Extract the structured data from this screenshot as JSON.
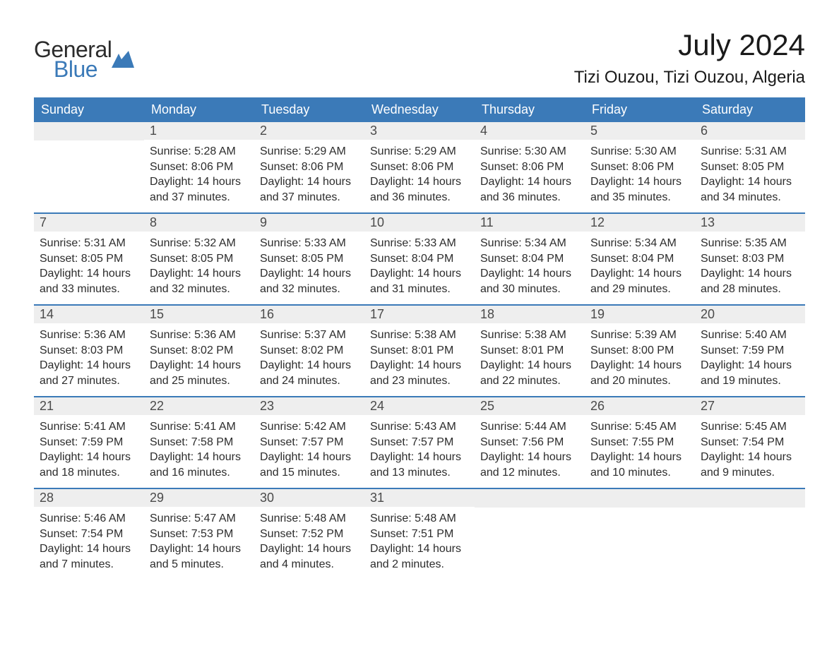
{
  "logo": {
    "word1": "General",
    "word2": "Blue",
    "icon_color": "#3b7ab8",
    "text_color_1": "#2c2c2c",
    "text_color_2": "#3b7ab8"
  },
  "title": "July 2024",
  "location": "Tizi Ouzou, Tizi Ouzou, Algeria",
  "colors": {
    "header_bg": "#3b7ab8",
    "header_text": "#ffffff",
    "daynum_bg": "#eeeeee",
    "daynum_text": "#4a4a4a",
    "body_text": "#2c2c2c",
    "week_border": "#3b7ab8",
    "page_bg": "#ffffff"
  },
  "typography": {
    "title_fontsize": 42,
    "location_fontsize": 24,
    "dayheader_fontsize": 18,
    "daynum_fontsize": 18,
    "detail_fontsize": 16,
    "font_family": "Arial"
  },
  "day_headers": [
    "Sunday",
    "Monday",
    "Tuesday",
    "Wednesday",
    "Thursday",
    "Friday",
    "Saturday"
  ],
  "weeks": [
    [
      {
        "num": "",
        "sunrise": "",
        "sunset": "",
        "daylight": ""
      },
      {
        "num": "1",
        "sunrise": "Sunrise: 5:28 AM",
        "sunset": "Sunset: 8:06 PM",
        "daylight": "Daylight: 14 hours and 37 minutes."
      },
      {
        "num": "2",
        "sunrise": "Sunrise: 5:29 AM",
        "sunset": "Sunset: 8:06 PM",
        "daylight": "Daylight: 14 hours and 37 minutes."
      },
      {
        "num": "3",
        "sunrise": "Sunrise: 5:29 AM",
        "sunset": "Sunset: 8:06 PM",
        "daylight": "Daylight: 14 hours and 36 minutes."
      },
      {
        "num": "4",
        "sunrise": "Sunrise: 5:30 AM",
        "sunset": "Sunset: 8:06 PM",
        "daylight": "Daylight: 14 hours and 36 minutes."
      },
      {
        "num": "5",
        "sunrise": "Sunrise: 5:30 AM",
        "sunset": "Sunset: 8:06 PM",
        "daylight": "Daylight: 14 hours and 35 minutes."
      },
      {
        "num": "6",
        "sunrise": "Sunrise: 5:31 AM",
        "sunset": "Sunset: 8:05 PM",
        "daylight": "Daylight: 14 hours and 34 minutes."
      }
    ],
    [
      {
        "num": "7",
        "sunrise": "Sunrise: 5:31 AM",
        "sunset": "Sunset: 8:05 PM",
        "daylight": "Daylight: 14 hours and 33 minutes."
      },
      {
        "num": "8",
        "sunrise": "Sunrise: 5:32 AM",
        "sunset": "Sunset: 8:05 PM",
        "daylight": "Daylight: 14 hours and 32 minutes."
      },
      {
        "num": "9",
        "sunrise": "Sunrise: 5:33 AM",
        "sunset": "Sunset: 8:05 PM",
        "daylight": "Daylight: 14 hours and 32 minutes."
      },
      {
        "num": "10",
        "sunrise": "Sunrise: 5:33 AM",
        "sunset": "Sunset: 8:04 PM",
        "daylight": "Daylight: 14 hours and 31 minutes."
      },
      {
        "num": "11",
        "sunrise": "Sunrise: 5:34 AM",
        "sunset": "Sunset: 8:04 PM",
        "daylight": "Daylight: 14 hours and 30 minutes."
      },
      {
        "num": "12",
        "sunrise": "Sunrise: 5:34 AM",
        "sunset": "Sunset: 8:04 PM",
        "daylight": "Daylight: 14 hours and 29 minutes."
      },
      {
        "num": "13",
        "sunrise": "Sunrise: 5:35 AM",
        "sunset": "Sunset: 8:03 PM",
        "daylight": "Daylight: 14 hours and 28 minutes."
      }
    ],
    [
      {
        "num": "14",
        "sunrise": "Sunrise: 5:36 AM",
        "sunset": "Sunset: 8:03 PM",
        "daylight": "Daylight: 14 hours and 27 minutes."
      },
      {
        "num": "15",
        "sunrise": "Sunrise: 5:36 AM",
        "sunset": "Sunset: 8:02 PM",
        "daylight": "Daylight: 14 hours and 25 minutes."
      },
      {
        "num": "16",
        "sunrise": "Sunrise: 5:37 AM",
        "sunset": "Sunset: 8:02 PM",
        "daylight": "Daylight: 14 hours and 24 minutes."
      },
      {
        "num": "17",
        "sunrise": "Sunrise: 5:38 AM",
        "sunset": "Sunset: 8:01 PM",
        "daylight": "Daylight: 14 hours and 23 minutes."
      },
      {
        "num": "18",
        "sunrise": "Sunrise: 5:38 AM",
        "sunset": "Sunset: 8:01 PM",
        "daylight": "Daylight: 14 hours and 22 minutes."
      },
      {
        "num": "19",
        "sunrise": "Sunrise: 5:39 AM",
        "sunset": "Sunset: 8:00 PM",
        "daylight": "Daylight: 14 hours and 20 minutes."
      },
      {
        "num": "20",
        "sunrise": "Sunrise: 5:40 AM",
        "sunset": "Sunset: 7:59 PM",
        "daylight": "Daylight: 14 hours and 19 minutes."
      }
    ],
    [
      {
        "num": "21",
        "sunrise": "Sunrise: 5:41 AM",
        "sunset": "Sunset: 7:59 PM",
        "daylight": "Daylight: 14 hours and 18 minutes."
      },
      {
        "num": "22",
        "sunrise": "Sunrise: 5:41 AM",
        "sunset": "Sunset: 7:58 PM",
        "daylight": "Daylight: 14 hours and 16 minutes."
      },
      {
        "num": "23",
        "sunrise": "Sunrise: 5:42 AM",
        "sunset": "Sunset: 7:57 PM",
        "daylight": "Daylight: 14 hours and 15 minutes."
      },
      {
        "num": "24",
        "sunrise": "Sunrise: 5:43 AM",
        "sunset": "Sunset: 7:57 PM",
        "daylight": "Daylight: 14 hours and 13 minutes."
      },
      {
        "num": "25",
        "sunrise": "Sunrise: 5:44 AM",
        "sunset": "Sunset: 7:56 PM",
        "daylight": "Daylight: 14 hours and 12 minutes."
      },
      {
        "num": "26",
        "sunrise": "Sunrise: 5:45 AM",
        "sunset": "Sunset: 7:55 PM",
        "daylight": "Daylight: 14 hours and 10 minutes."
      },
      {
        "num": "27",
        "sunrise": "Sunrise: 5:45 AM",
        "sunset": "Sunset: 7:54 PM",
        "daylight": "Daylight: 14 hours and 9 minutes."
      }
    ],
    [
      {
        "num": "28",
        "sunrise": "Sunrise: 5:46 AM",
        "sunset": "Sunset: 7:54 PM",
        "daylight": "Daylight: 14 hours and 7 minutes."
      },
      {
        "num": "29",
        "sunrise": "Sunrise: 5:47 AM",
        "sunset": "Sunset: 7:53 PM",
        "daylight": "Daylight: 14 hours and 5 minutes."
      },
      {
        "num": "30",
        "sunrise": "Sunrise: 5:48 AM",
        "sunset": "Sunset: 7:52 PM",
        "daylight": "Daylight: 14 hours and 4 minutes."
      },
      {
        "num": "31",
        "sunrise": "Sunrise: 5:48 AM",
        "sunset": "Sunset: 7:51 PM",
        "daylight": "Daylight: 14 hours and 2 minutes."
      },
      {
        "num": "",
        "sunrise": "",
        "sunset": "",
        "daylight": ""
      },
      {
        "num": "",
        "sunrise": "",
        "sunset": "",
        "daylight": ""
      },
      {
        "num": "",
        "sunrise": "",
        "sunset": "",
        "daylight": ""
      }
    ]
  ]
}
